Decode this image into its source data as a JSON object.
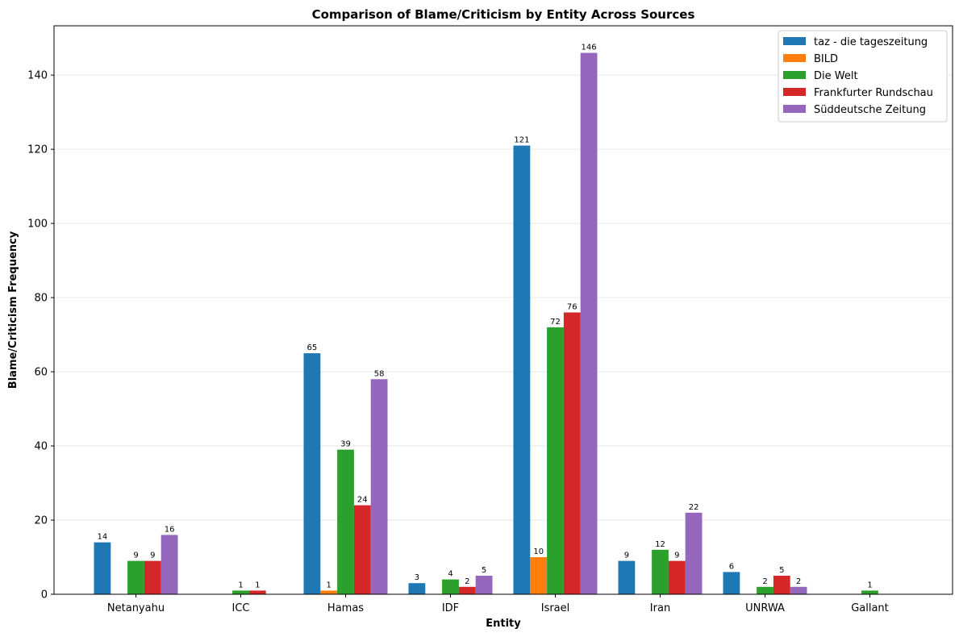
{
  "chart_data": {
    "type": "bar",
    "title": "Comparison of Blame/Criticism by Entity Across Sources",
    "xlabel": "Entity",
    "ylabel": "Blame/Criticism Frequency",
    "categories": [
      "Netanyahu",
      "ICC",
      "Hamas",
      "IDF",
      "Israel",
      "Iran",
      "UNRWA",
      "Gallant"
    ],
    "ylim": [
      0,
      153.3
    ],
    "yticks": [
      0,
      20,
      40,
      60,
      80,
      100,
      120,
      140
    ],
    "grid": "y",
    "legend_position": "top-right",
    "series": [
      {
        "name": "taz - die tageszeitung",
        "color": "#1f77b4",
        "values": [
          14,
          0,
          65,
          3,
          121,
          9,
          6,
          0
        ]
      },
      {
        "name": "BILD",
        "color": "#ff7f0e",
        "values": [
          0,
          0,
          1,
          0,
          10,
          0,
          0,
          0
        ]
      },
      {
        "name": "Die Welt",
        "color": "#2ca02c",
        "values": [
          9,
          1,
          39,
          4,
          72,
          12,
          2,
          1
        ]
      },
      {
        "name": "Frankfurter Rundschau",
        "color": "#d62728",
        "values": [
          9,
          1,
          24,
          2,
          76,
          9,
          5,
          0
        ]
      },
      {
        "name": "Süddeutsche Zeitung",
        "color": "#9467bd",
        "values": [
          16,
          0,
          58,
          5,
          146,
          22,
          2,
          0
        ]
      }
    ]
  }
}
